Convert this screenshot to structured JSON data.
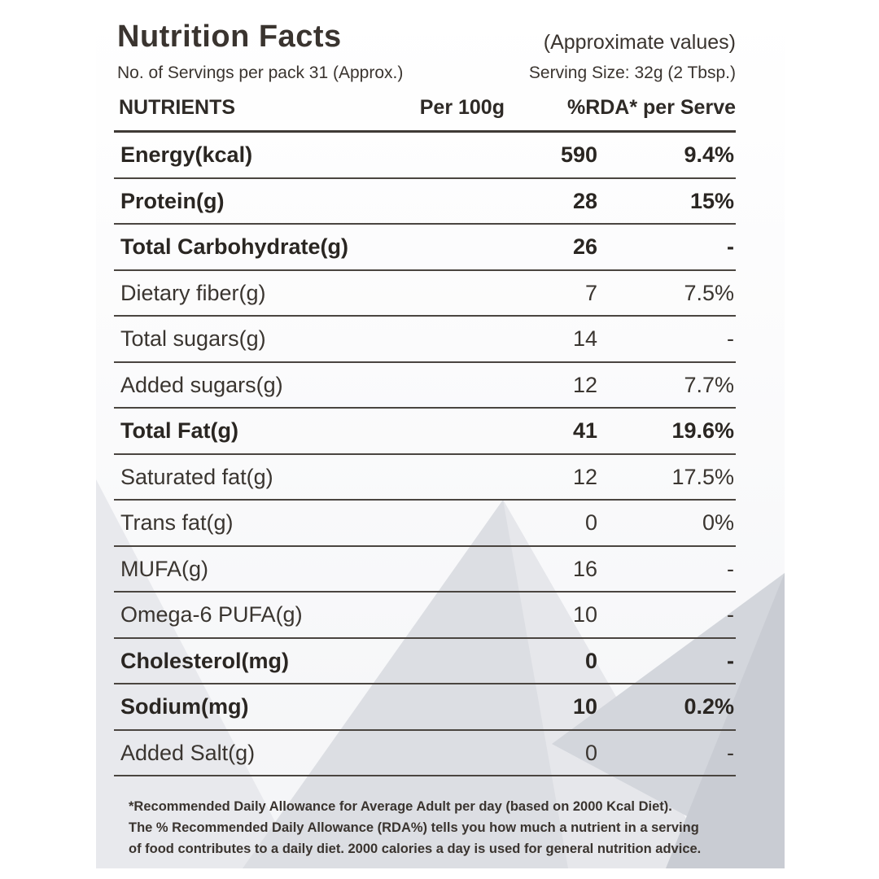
{
  "header": {
    "title": "Nutrition Facts",
    "approx_note": "(Approximate values)",
    "servings_per_pack": "No. of Servings per pack 31 (Approx.)",
    "serving_size": "Serving Size: 32g (2 Tbsp.)"
  },
  "columns": {
    "nutrients": "NUTRIENTS",
    "per_100g": "Per 100g",
    "rda": "%RDA* per Serve"
  },
  "rows": [
    {
      "name": "Energy(kcal)",
      "per_100g": "590",
      "rda": "9.4%",
      "bold": true
    },
    {
      "name": "Protein(g)",
      "per_100g": "28",
      "rda": "15%",
      "bold": true
    },
    {
      "name": "Total Carbohydrate(g)",
      "per_100g": "26",
      "rda": "-",
      "bold": true
    },
    {
      "name": "Dietary fiber(g)",
      "per_100g": "7",
      "rda": "7.5%",
      "bold": false
    },
    {
      "name": "Total sugars(g)",
      "per_100g": "14",
      "rda": "-",
      "bold": false
    },
    {
      "name": "Added sugars(g)",
      "per_100g": "12",
      "rda": "7.7%",
      "bold": false
    },
    {
      "name": "Total Fat(g)",
      "per_100g": "41",
      "rda": "19.6%",
      "bold": true
    },
    {
      "name": "Saturated fat(g)",
      "per_100g": "12",
      "rda": "17.5%",
      "bold": false
    },
    {
      "name": "Trans fat(g)",
      "per_100g": "0",
      "rda": "0%",
      "bold": false
    },
    {
      "name": "MUFA(g)",
      "per_100g": "16",
      "rda": "-",
      "bold": false
    },
    {
      "name": "Omega-6 PUFA(g)",
      "per_100g": "10",
      "rda": "-",
      "bold": false
    },
    {
      "name": "Cholesterol(mg)",
      "per_100g": "0",
      "rda": "-",
      "bold": true
    },
    {
      "name": "Sodium(mg)",
      "per_100g": "10",
      "rda": "0.2%",
      "bold": true
    },
    {
      "name": "Added Salt(g)",
      "per_100g": "0",
      "rda": "-",
      "bold": false
    }
  ],
  "footnote": {
    "line1": "*Recommended Daily Allowance for Average Adult per day (based on 2000 Kcal Diet).",
    "line2": "The % Recommended Daily Allowance (RDA%) tells you how much a nutrient in a serving",
    "line3": "of food contributes to a daily diet. 2000 calories a day is used for general nutrition advice."
  },
  "colors": {
    "text": "#2e2a26",
    "rule": "#4a4540",
    "shape_light": "#e9eaee",
    "shape_mid": "#d9dbe1",
    "shape_dark": "#cdd0d7"
  }
}
